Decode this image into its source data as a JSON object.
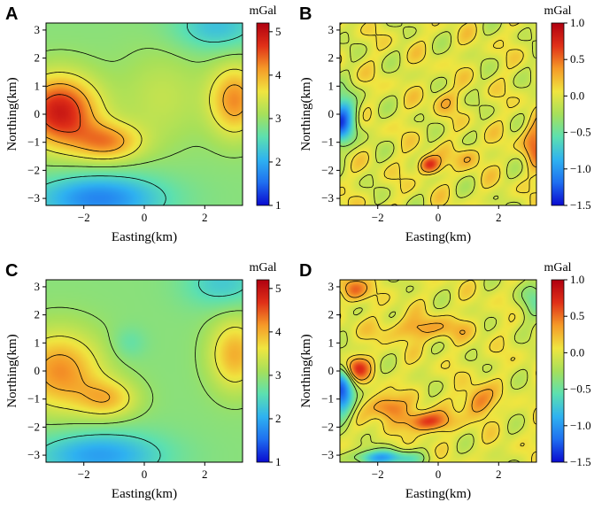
{
  "colormap": [
    "#0a0ad0",
    "#1f6ff0",
    "#2fb2f0",
    "#5ce0b0",
    "#a6e05a",
    "#f0e540",
    "#f59a28",
    "#e03018",
    "#b00010"
  ],
  "chart_data": [
    {
      "type": "heatmap",
      "panel": "A",
      "xlabel": "Easting(km)",
      "ylabel": "Northing(km)",
      "xlim": [
        -3.25,
        3.25
      ],
      "ylim": [
        -3.25,
        3.25
      ],
      "xticks": [
        -2,
        0,
        2
      ],
      "xtick_labels": [
        "−2",
        "0",
        "2"
      ],
      "yticks": [
        -3,
        -2,
        -1,
        0,
        1,
        2,
        3
      ],
      "ytick_labels": [
        "−3",
        "−2",
        "−1",
        "0",
        "1",
        "2",
        "3"
      ],
      "colorbar_label": "mGal",
      "clim": [
        1.0,
        5.2
      ],
      "colorbar_ticks": [
        1,
        2,
        3,
        4,
        5
      ],
      "colorbar_tick_labels": [
        "1",
        "2",
        "3",
        "4",
        "5"
      ],
      "contour_levels": [
        2.5,
        3.0,
        3.5,
        4.0,
        4.5
      ],
      "field": {
        "base": 2.9,
        "anomalies": [
          {
            "x": -2.8,
            "y": 0.1,
            "amp": 2.0,
            "sx": 0.9,
            "sy": 0.9
          },
          {
            "x": -1.2,
            "y": -1.0,
            "amp": 1.2,
            "sx": 0.8,
            "sy": 0.5
          },
          {
            "x": 3.0,
            "y": 0.5,
            "amp": 1.3,
            "sx": 0.6,
            "sy": 0.9
          },
          {
            "x": -1.5,
            "y": -3.0,
            "amp": -1.2,
            "sx": 1.5,
            "sy": 0.6
          },
          {
            "x": 2.4,
            "y": 3.1,
            "amp": -0.7,
            "sx": 1.0,
            "sy": 0.6
          },
          {
            "x": 0.6,
            "y": 0.6,
            "amp": 0.4,
            "sx": 1.0,
            "sy": 1.2
          }
        ]
      }
    },
    {
      "type": "heatmap",
      "panel": "B",
      "xlabel": "Easting(km)",
      "ylabel": "Northing(km)",
      "xlim": [
        -3.25,
        3.25
      ],
      "ylim": [
        -3.25,
        3.25
      ],
      "xticks": [
        -2,
        0,
        2
      ],
      "xtick_labels": [
        "−2",
        "0",
        "2"
      ],
      "yticks": [
        -3,
        -2,
        -1,
        0,
        1,
        2,
        3
      ],
      "ytick_labels": [
        "−3",
        "−2",
        "−1",
        "0",
        "1",
        "2",
        "3"
      ],
      "colorbar_label": "mGal",
      "clim": [
        -1.5,
        1.0
      ],
      "colorbar_ticks": [
        -1.5,
        -1.0,
        -0.5,
        0.0,
        0.5,
        1.0
      ],
      "colorbar_tick_labels": [
        "−1.5",
        "−1.0",
        "−0.5",
        "0.0",
        "0.5",
        "1.0"
      ],
      "contour_levels": [
        -0.3,
        -0.1,
        0.1,
        0.3
      ],
      "field": {
        "base": 0.0,
        "anomalies": [
          {
            "x": -3.2,
            "y": -0.2,
            "amp": -1.2,
            "sx": 0.35,
            "sy": 0.6
          },
          {
            "x": -0.3,
            "y": -1.8,
            "amp": 0.8,
            "sx": 0.25,
            "sy": 0.22
          },
          {
            "x": 3.2,
            "y": -1.0,
            "amp": 0.5,
            "sx": 0.3,
            "sy": 0.6
          },
          {
            "x": 0.2,
            "y": 0.5,
            "amp": 0.25,
            "sx": 0.3,
            "sy": 0.3
          },
          {
            "x": 1.0,
            "y": -1.5,
            "amp": 0.3,
            "sx": 0.3,
            "sy": 0.3
          }
        ],
        "noise": 0.25
      }
    },
    {
      "type": "heatmap",
      "panel": "C",
      "xlabel": "Easting(km)",
      "ylabel": "Northing(km)",
      "xlim": [
        -3.25,
        3.25
      ],
      "ylim": [
        -3.25,
        3.25
      ],
      "xticks": [
        -2,
        0,
        2
      ],
      "xtick_labels": [
        "−2",
        "0",
        "2"
      ],
      "yticks": [
        -3,
        -2,
        -1,
        0,
        1,
        2,
        3
      ],
      "ytick_labels": [
        "−3",
        "−2",
        "−1",
        "0",
        "1",
        "2",
        "3"
      ],
      "colorbar_label": "mGal",
      "clim": [
        1.0,
        5.2
      ],
      "colorbar_ticks": [
        1,
        2,
        3,
        4,
        5
      ],
      "colorbar_tick_labels": [
        "1",
        "2",
        "3",
        "4",
        "5"
      ],
      "contour_levels": [
        2.5,
        3.0,
        3.5,
        4.0
      ],
      "field": {
        "base": 2.9,
        "anomalies": [
          {
            "x": -2.8,
            "y": 0.0,
            "amp": 1.3,
            "sx": 1.0,
            "sy": 1.0
          },
          {
            "x": -1.2,
            "y": -1.0,
            "amp": 0.9,
            "sx": 0.7,
            "sy": 0.5
          },
          {
            "x": 3.0,
            "y": 0.6,
            "amp": 1.1,
            "sx": 0.6,
            "sy": 0.9
          },
          {
            "x": -1.5,
            "y": -3.0,
            "amp": -1.0,
            "sx": 1.5,
            "sy": 0.6
          },
          {
            "x": 2.6,
            "y": 3.1,
            "amp": -0.6,
            "sx": 0.9,
            "sy": 0.6
          },
          {
            "x": -0.5,
            "y": 1.0,
            "amp": -0.3,
            "sx": 0.4,
            "sy": 0.4
          }
        ]
      }
    },
    {
      "type": "heatmap",
      "panel": "D",
      "xlabel": "Easting(km)",
      "ylabel": "Northing(km)",
      "xlim": [
        -3.25,
        3.25
      ],
      "ylim": [
        -3.25,
        3.25
      ],
      "xticks": [
        -2,
        0,
        2
      ],
      "xtick_labels": [
        "−2",
        "0",
        "2"
      ],
      "yticks": [
        -3,
        -2,
        -1,
        0,
        1,
        2,
        3
      ],
      "ytick_labels": [
        "−3",
        "−2",
        "−1",
        "0",
        "1",
        "2",
        "3"
      ],
      "colorbar_label": "mGal",
      "clim": [
        -1.5,
        1.0
      ],
      "colorbar_ticks": [
        -1.5,
        -1.0,
        -0.5,
        0.0,
        0.5,
        1.0
      ],
      "colorbar_tick_labels": [
        "−1.5",
        "−1.0",
        "−0.5",
        "0.0",
        "0.5",
        "1.0"
      ],
      "contour_levels": [
        -0.3,
        -0.1,
        0.1,
        0.3
      ],
      "field": {
        "base": 0.0,
        "anomalies": [
          {
            "x": -2.7,
            "y": 0.1,
            "amp": 0.7,
            "sx": 0.3,
            "sy": 0.3
          },
          {
            "x": -1.7,
            "y": -1.3,
            "amp": 0.6,
            "sx": 0.4,
            "sy": 0.3
          },
          {
            "x": -0.4,
            "y": -1.8,
            "amp": 0.75,
            "sx": 0.5,
            "sy": 0.25
          },
          {
            "x": 1.3,
            "y": -1.1,
            "amp": 0.5,
            "sx": 0.35,
            "sy": 0.4
          },
          {
            "x": -2.8,
            "y": 2.9,
            "amp": 0.55,
            "sx": 0.3,
            "sy": 0.3
          },
          {
            "x": -3.2,
            "y": -0.8,
            "amp": -1.2,
            "sx": 0.3,
            "sy": 0.6
          },
          {
            "x": -1.8,
            "y": -3.1,
            "amp": -0.9,
            "sx": 0.8,
            "sy": 0.2
          },
          {
            "x": -0.5,
            "y": 1.5,
            "amp": 0.35,
            "sx": 1.0,
            "sy": 0.3
          },
          {
            "x": 3.2,
            "y": 2.5,
            "amp": -0.4,
            "sx": 0.4,
            "sy": 0.5
          }
        ],
        "noise": 0.2
      }
    }
  ]
}
